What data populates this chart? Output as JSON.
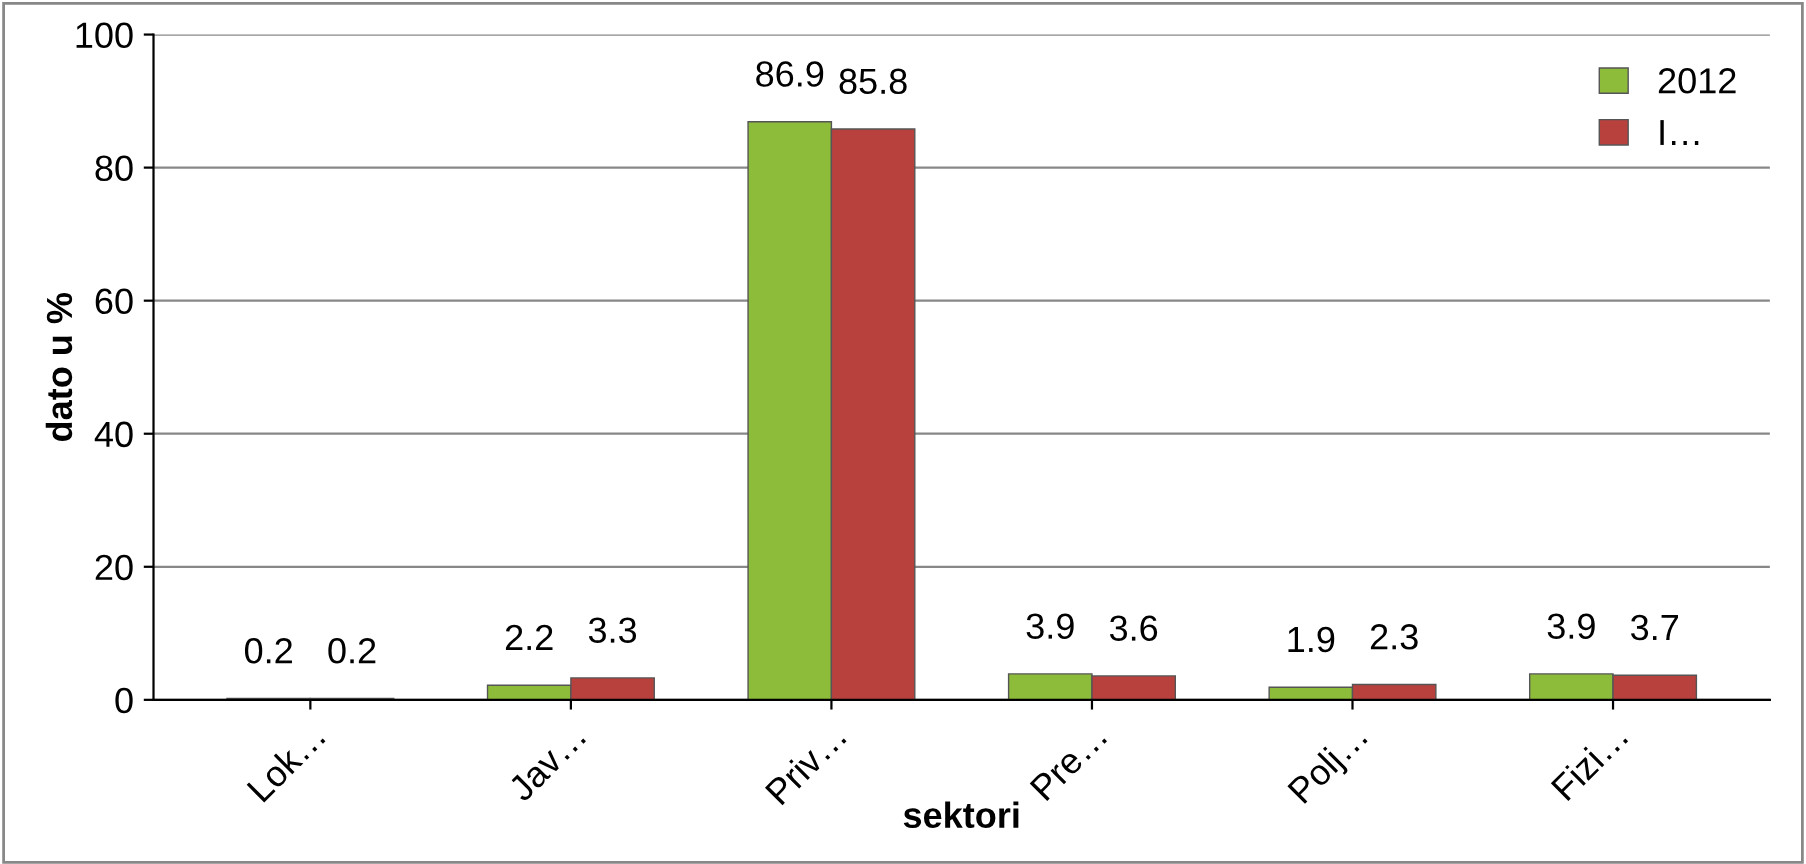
{
  "chart_data": {
    "type": "bar",
    "xlabel": "sektori",
    "ylabel": "dato u %",
    "categories": [
      "Lok…",
      "Jav…",
      "Priv…",
      "Pre…",
      "Polj…",
      "Fizi…"
    ],
    "series": [
      {
        "name": "2012",
        "color": "#8dbb3a",
        "values": [
          0.2,
          2.2,
          86.9,
          3.9,
          1.9,
          3.9
        ]
      },
      {
        "name": "I…",
        "color": "#b8413e",
        "values": [
          0.2,
          3.3,
          85.8,
          3.6,
          2.3,
          3.7
        ]
      }
    ],
    "ylim": [
      0,
      100
    ],
    "yticks": [
      0,
      20,
      40,
      60,
      80,
      100
    ],
    "grid": "y",
    "legend": "top right",
    "data_labels": true
  }
}
